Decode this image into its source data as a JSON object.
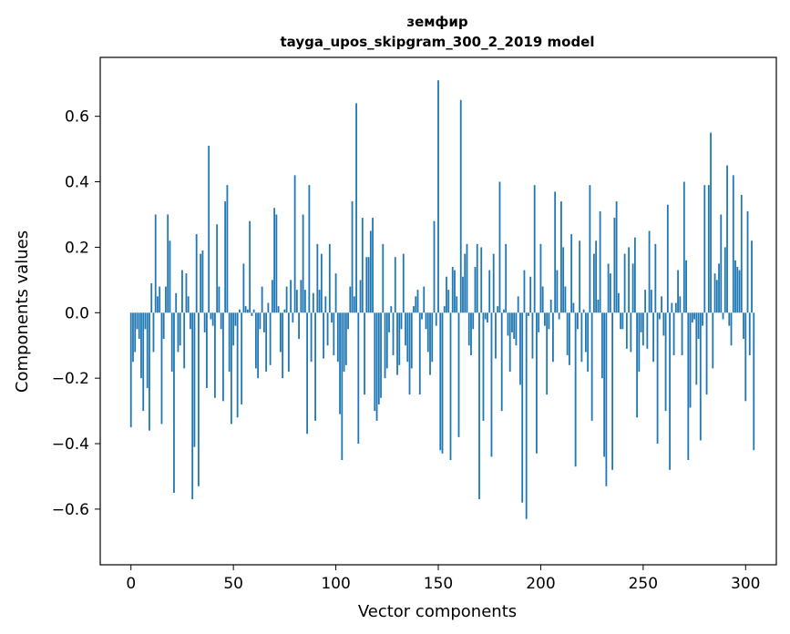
{
  "chart_data": {
    "type": "bar",
    "title": "земфир",
    "subtitle": "tayga_upos_skipgram_300_2_2019 model",
    "xlabel": "Vector components",
    "ylabel": "Components values",
    "xlim": [
      -15,
      315
    ],
    "ylim": [
      -0.77,
      0.78
    ],
    "xticks": [
      0,
      50,
      100,
      150,
      200,
      250,
      300
    ],
    "yticks": [
      -0.6,
      -0.4,
      -0.2,
      0.0,
      0.2,
      0.4,
      0.6
    ],
    "xtick_labels": [
      "0",
      "50",
      "100",
      "150",
      "200",
      "250",
      "300"
    ],
    "ytick_labels": [
      "−0.6",
      "−0.4",
      "−0.2",
      "0.0",
      "0.2",
      "0.4",
      "0.6"
    ],
    "bar_color": "#1f77b4",
    "x_start": 0,
    "values": [
      -0.35,
      -0.15,
      -0.12,
      -0.05,
      -0.08,
      -0.2,
      -0.3,
      -0.05,
      -0.23,
      -0.36,
      0.09,
      -0.12,
      0.3,
      0.05,
      0.08,
      -0.34,
      -0.08,
      0.08,
      0.3,
      0.22,
      -0.18,
      -0.55,
      0.06,
      -0.12,
      -0.1,
      0.13,
      -0.17,
      0.12,
      0.05,
      -0.05,
      -0.57,
      -0.41,
      0.24,
      -0.53,
      0.18,
      0.19,
      -0.06,
      -0.23,
      0.51,
      -0.02,
      -0.04,
      -0.26,
      0.27,
      0.08,
      -0.05,
      -0.27,
      0.34,
      0.39,
      -0.18,
      -0.34,
      -0.1,
      -0.04,
      -0.32,
      0.01,
      -0.28,
      0.15,
      0.02,
      0.01,
      0.28,
      -0.01,
      0.01,
      -0.17,
      -0.2,
      -0.05,
      0.08,
      -0.06,
      -0.18,
      0.03,
      -0.16,
      0.1,
      0.32,
      0.3,
      0.02,
      -0.12,
      -0.2,
      0.01,
      0.08,
      -0.18,
      0.1,
      -0.03,
      0.42,
      0.07,
      -0.08,
      0.1,
      0.3,
      0.07,
      -0.37,
      0.39,
      -0.15,
      0.06,
      -0.33,
      0.21,
      0.07,
      0.18,
      -0.14,
      0.05,
      -0.1,
      0.21,
      -0.03,
      -0.13,
      0.12,
      -0.15,
      -0.31,
      -0.45,
      -0.18,
      -0.16,
      -0.05,
      0.08,
      0.34,
      0.05,
      0.64,
      -0.4,
      0.1,
      0.29,
      -0.25,
      0.17,
      0.17,
      0.25,
      0.29,
      -0.3,
      -0.33,
      -0.28,
      -0.26,
      0.21,
      -0.2,
      -0.17,
      -0.06,
      0.02,
      -0.13,
      0.17,
      -0.19,
      -0.16,
      -0.05,
      0.18,
      -0.1,
      -0.15,
      -0.25,
      -0.17,
      0.02,
      0.05,
      0.07,
      -0.25,
      -0.02,
      0.08,
      -0.05,
      -0.12,
      -0.19,
      -0.15,
      0.28,
      -0.04,
      0.71,
      -0.42,
      -0.43,
      0.02,
      0.11,
      0.07,
      -0.45,
      0.14,
      0.13,
      0.05,
      -0.38,
      0.65,
      0.11,
      0.18,
      0.21,
      -0.1,
      -0.13,
      -0.05,
      0.14,
      0.21,
      -0.57,
      0.2,
      -0.33,
      -0.02,
      -0.03,
      0.13,
      -0.44,
      0.18,
      -0.14,
      0.02,
      0.4,
      -0.3,
      0.01,
      0.21,
      -0.07,
      -0.18,
      -0.06,
      -0.08,
      -0.1,
      0.05,
      -0.22,
      -0.58,
      0.13,
      -0.63,
      -0.01,
      0.11,
      -0.14,
      0.39,
      -0.43,
      -0.06,
      0.21,
      0.08,
      -0.04,
      -0.25,
      -0.05,
      0.04,
      -0.15,
      0.37,
      0.13,
      -0.02,
      0.34,
      0.2,
      0.08,
      -0.13,
      -0.16,
      0.24,
      0.03,
      -0.47,
      -0.05,
      0.22,
      -0.15,
      0.01,
      -0.12,
      -0.18,
      0.39,
      -0.33,
      0.18,
      0.22,
      0.04,
      0.31,
      -0.2,
      -0.44,
      -0.53,
      0.15,
      0.12,
      -0.48,
      0.29,
      0.34,
      0.06,
      -0.05,
      -0.05,
      0.18,
      -0.11,
      0.2,
      -0.12,
      0.15,
      0.23,
      -0.32,
      -0.18,
      -0.06,
      -0.1,
      0.07,
      -0.11,
      0.25,
      0.07,
      -0.15,
      0.21,
      -0.4,
      -0.02,
      0.05,
      -0.07,
      -0.3,
      0.33,
      -0.48,
      0.03,
      -0.13,
      0.03,
      0.13,
      0.05,
      -0.13,
      0.4,
      0.16,
      -0.45,
      -0.29,
      -0.03,
      -0.02,
      -0.22,
      -0.08,
      -0.39,
      -0.04,
      0.39,
      -0.25,
      0.39,
      0.55,
      -0.17,
      0.12,
      0.1,
      0.15,
      0.3,
      -0.02,
      0.2,
      0.45,
      -0.04,
      -0.1,
      0.42,
      0.16,
      0.14,
      0.13,
      0.36,
      -0.08,
      -0.27,
      0.31,
      -0.13,
      0.22,
      -0.42
    ]
  }
}
